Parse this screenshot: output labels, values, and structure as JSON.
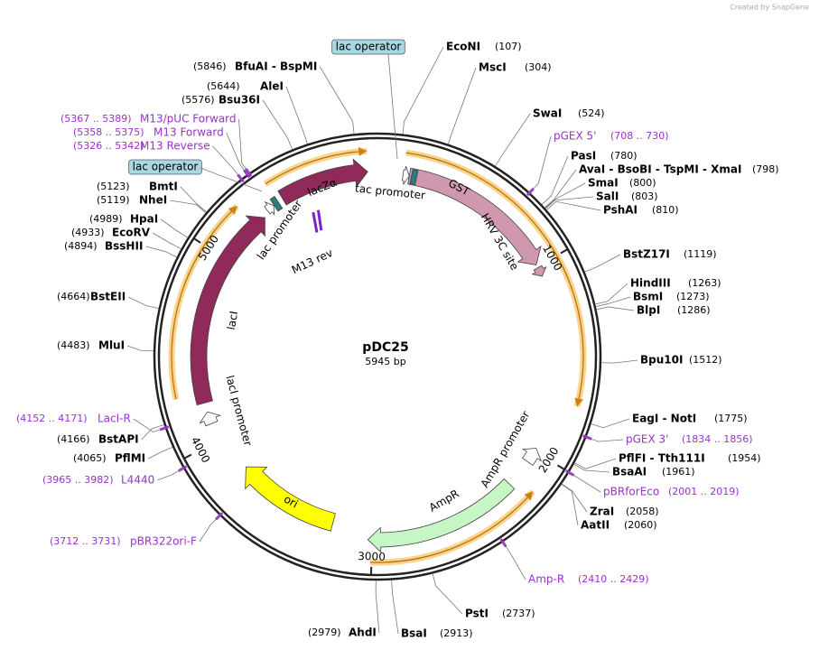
{
  "watermark": "Created by SnapGene",
  "plasmid": {
    "name": "pDC25",
    "size": "5945 bp"
  },
  "ticks": [
    1000,
    2000,
    3000,
    4000,
    5000
  ],
  "enzymes": [
    {
      "name": "EcoNI",
      "position": "(107)"
    },
    {
      "name": "MscI",
      "position": "(304)"
    },
    {
      "name": "SwaI",
      "position": "(524)"
    },
    {
      "name": "PasI",
      "position": "(780)"
    },
    {
      "name": "AvaI - BsoBI - TspMI - XmaI",
      "position": "(798)"
    },
    {
      "name": "SmaI",
      "position": "(800)"
    },
    {
      "name": "SalI",
      "position": "(803)"
    },
    {
      "name": "PshAI",
      "position": "(810)"
    },
    {
      "name": "BstZ17I",
      "position": "(1119)"
    },
    {
      "name": "HindIII",
      "position": "(1263)"
    },
    {
      "name": "BsmI",
      "position": "(1273)"
    },
    {
      "name": "BlpI",
      "position": "(1286)"
    },
    {
      "name": "Bpu10I",
      "position": "(1512)"
    },
    {
      "name": "EagI - NotI",
      "position": "(1775)"
    },
    {
      "name": "PflFI - Tth111I",
      "position": "(1954)"
    },
    {
      "name": "BsaAI",
      "position": "(1961)"
    },
    {
      "name": "ZraI",
      "position": "(2058)"
    },
    {
      "name": "AatII",
      "position": "(2060)"
    },
    {
      "name": "PstI",
      "position": "(2737)"
    },
    {
      "name": "BsaI",
      "position": "(2913)"
    },
    {
      "name": "AhdI",
      "position": "(2979)"
    },
    {
      "name": "PflMI",
      "position": "(4065)"
    },
    {
      "name": "BstAPI",
      "position": "(4166)"
    },
    {
      "name": "MluI",
      "position": "(4483)"
    },
    {
      "name": "BstEII",
      "position": "(4664)"
    },
    {
      "name": "BssHII",
      "position": "(4894)"
    },
    {
      "name": "EcoRV",
      "position": "(4933)"
    },
    {
      "name": "HpaI",
      "position": "(4989)"
    },
    {
      "name": "NheI",
      "position": "(5119)"
    },
    {
      "name": "BmtI",
      "position": "(5123)"
    },
    {
      "name": "Bsu36I",
      "position": "(5576)"
    },
    {
      "name": "AleI",
      "position": "(5644)"
    },
    {
      "name": "BfuAI - BspMI",
      "position": "(5846)"
    }
  ],
  "primers": [
    {
      "name": "pGEX 5'",
      "range": "(708 .. 730)"
    },
    {
      "name": "pGEX 3'",
      "range": "(1834 .. 1856)"
    },
    {
      "name": "pBRforEco",
      "range": "(2001 .. 2019)"
    },
    {
      "name": "Amp-R",
      "range": "(2410 .. 2429)"
    },
    {
      "name": "pBR322ori-F",
      "range": "(3712 .. 3731)"
    },
    {
      "name": "L4440",
      "range": "(3965 .. 3982)"
    },
    {
      "name": "LacI-R",
      "range": "(4152 .. 4171)"
    },
    {
      "name": "M13 Reverse",
      "range": "(5326 .. 5342)"
    },
    {
      "name": "M13 Forward",
      "range": "(5358 .. 5375)"
    },
    {
      "name": "M13/pUC Forward",
      "range": "(5367 .. 5389)"
    }
  ],
  "features": [
    "lac operator",
    "lac operator",
    "tac promoter",
    "GST",
    "HRV 3C site",
    "lacZα",
    "lac promoter",
    "M13 rev",
    "lacI",
    "lacI promoter",
    "AmpR promoter",
    "AmpR",
    "ori"
  ]
}
